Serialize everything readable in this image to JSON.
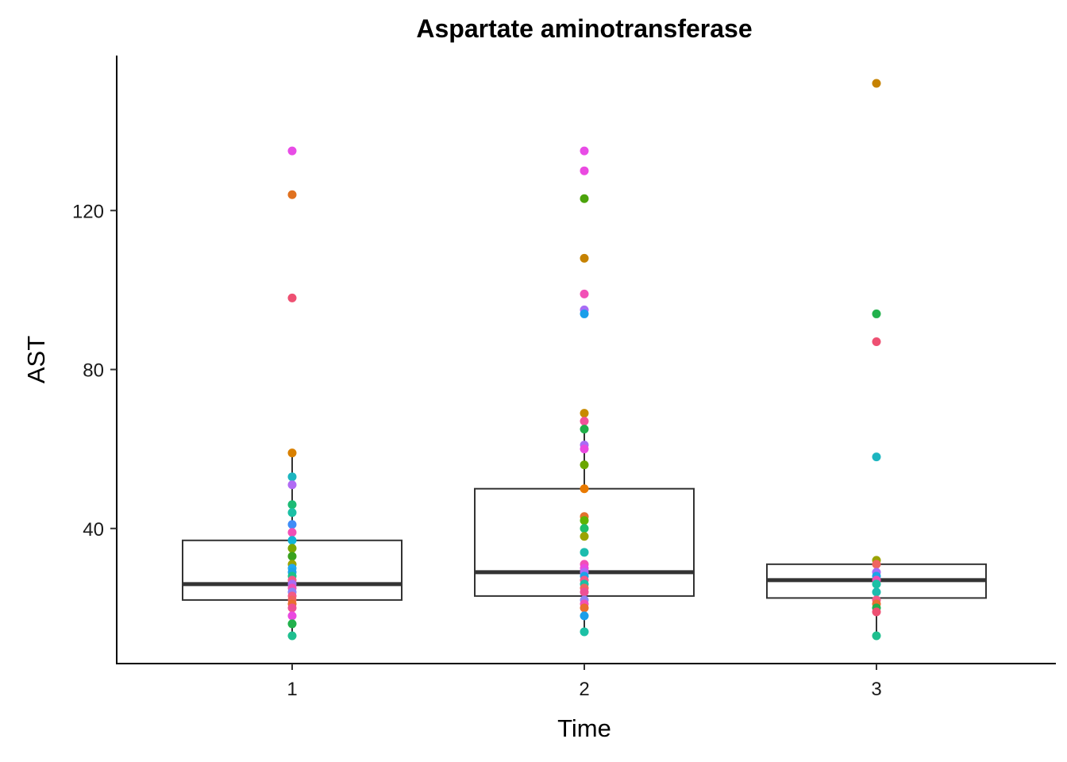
{
  "chart_data": {
    "type": "box",
    "title": "Aspartate aminotransferase",
    "xlabel": "Time",
    "ylabel": "AST",
    "categories": [
      "1",
      "2",
      "3"
    ],
    "ylim": [
      6,
      159
    ],
    "yticks": [
      40,
      80,
      120
    ],
    "grid": false,
    "legend": "none",
    "boxes": [
      {
        "category": "1",
        "q1": 22,
        "median": 26,
        "q3": 37,
        "whisker_low": 13,
        "whisker_high": 59
      },
      {
        "category": "2",
        "q1": 23,
        "median": 29,
        "q3": 50,
        "whisker_low": 14,
        "whisker_high": 69
      },
      {
        "category": "3",
        "q1": 22.5,
        "median": 27,
        "q3": 31,
        "whisker_low": 13,
        "whisker_high": 32
      }
    ],
    "points": [
      {
        "x": "1",
        "y": 135,
        "color": "#e84ce6"
      },
      {
        "x": "1",
        "y": 124,
        "color": "#e0711f"
      },
      {
        "x": "1",
        "y": 98,
        "color": "#ee5072"
      },
      {
        "x": "1",
        "y": 59,
        "color": "#d98000"
      },
      {
        "x": "1",
        "y": 53,
        "color": "#1cb5c0"
      },
      {
        "x": "1",
        "y": 51,
        "color": "#b16bf4"
      },
      {
        "x": "1",
        "y": 46,
        "color": "#1dbb75"
      },
      {
        "x": "1",
        "y": 44,
        "color": "#1cc0a5"
      },
      {
        "x": "1",
        "y": 41,
        "color": "#3f8df7"
      },
      {
        "x": "1",
        "y": 39,
        "color": "#f24fb6"
      },
      {
        "x": "1",
        "y": 37,
        "color": "#12b4d6"
      },
      {
        "x": "1",
        "y": 35,
        "color": "#7aa600"
      },
      {
        "x": "1",
        "y": 33,
        "color": "#3aa11e"
      },
      {
        "x": "1",
        "y": 31,
        "color": "#9ba300"
      },
      {
        "x": "1",
        "y": 30,
        "color": "#22a7f0"
      },
      {
        "x": "1",
        "y": 29,
        "color": "#1aa4e8"
      },
      {
        "x": "1",
        "y": 28,
        "color": "#1bc28a"
      },
      {
        "x": "1",
        "y": 27,
        "color": "#f25a8a"
      },
      {
        "x": "1",
        "y": 26,
        "color": "#a86cf5"
      },
      {
        "x": "1",
        "y": 25,
        "color": "#f24fb6"
      },
      {
        "x": "1",
        "y": 24,
        "color": "#8f83f3"
      },
      {
        "x": "1",
        "y": 23,
        "color": "#f45a87"
      },
      {
        "x": "1",
        "y": 22,
        "color": "#f06560"
      },
      {
        "x": "1",
        "y": 21,
        "color": "#e96f2f"
      },
      {
        "x": "1",
        "y": 20,
        "color": "#ee5094"
      },
      {
        "x": "1",
        "y": 18,
        "color": "#ea49e0"
      },
      {
        "x": "1",
        "y": 16,
        "color": "#22b14c"
      },
      {
        "x": "1",
        "y": 13,
        "color": "#1fbf8f"
      },
      {
        "x": "2",
        "y": 135,
        "color": "#e84ce6"
      },
      {
        "x": "2",
        "y": 130,
        "color": "#ea49e0"
      },
      {
        "x": "2",
        "y": 123,
        "color": "#4ba30b"
      },
      {
        "x": "2",
        "y": 108,
        "color": "#c68200"
      },
      {
        "x": "2",
        "y": 99,
        "color": "#f24fb6"
      },
      {
        "x": "2",
        "y": 95,
        "color": "#a86cf5"
      },
      {
        "x": "2",
        "y": 94,
        "color": "#1a9eea"
      },
      {
        "x": "2",
        "y": 69,
        "color": "#c88a00"
      },
      {
        "x": "2",
        "y": 67,
        "color": "#f2519a"
      },
      {
        "x": "2",
        "y": 65,
        "color": "#1fae48"
      },
      {
        "x": "2",
        "y": 61,
        "color": "#a86cf5"
      },
      {
        "x": "2",
        "y": 60,
        "color": "#ea49e0"
      },
      {
        "x": "2",
        "y": 56,
        "color": "#6aa700"
      },
      {
        "x": "2",
        "y": 50,
        "color": "#e97a00"
      },
      {
        "x": "2",
        "y": 43,
        "color": "#e4712c"
      },
      {
        "x": "2",
        "y": 42,
        "color": "#5fb300"
      },
      {
        "x": "2",
        "y": 40,
        "color": "#1fbd68"
      },
      {
        "x": "2",
        "y": 38,
        "color": "#9ba300"
      },
      {
        "x": "2",
        "y": 34,
        "color": "#1cbcae"
      },
      {
        "x": "2",
        "y": 31,
        "color": "#f24fb6"
      },
      {
        "x": "2",
        "y": 30,
        "color": "#ea49e0"
      },
      {
        "x": "2",
        "y": 29,
        "color": "#b16bf4"
      },
      {
        "x": "2",
        "y": 28,
        "color": "#1aa4e8"
      },
      {
        "x": "2",
        "y": 27,
        "color": "#f45a87"
      },
      {
        "x": "2",
        "y": 26,
        "color": "#1cc0a5"
      },
      {
        "x": "2",
        "y": 25,
        "color": "#f06560"
      },
      {
        "x": "2",
        "y": 24,
        "color": "#ee5094"
      },
      {
        "x": "2",
        "y": 22,
        "color": "#8f83f3"
      },
      {
        "x": "2",
        "y": 21,
        "color": "#f24fb6"
      },
      {
        "x": "2",
        "y": 20,
        "color": "#e96f2f"
      },
      {
        "x": "2",
        "y": 18,
        "color": "#1a9eea"
      },
      {
        "x": "2",
        "y": 14,
        "color": "#1cc0a5"
      },
      {
        "x": "3",
        "y": 152,
        "color": "#c68200"
      },
      {
        "x": "3",
        "y": 94,
        "color": "#22b14c"
      },
      {
        "x": "3",
        "y": 87,
        "color": "#ee5072"
      },
      {
        "x": "3",
        "y": 58,
        "color": "#1cb5c0"
      },
      {
        "x": "3",
        "y": 32,
        "color": "#9ba300"
      },
      {
        "x": "3",
        "y": 31,
        "color": "#f06560"
      },
      {
        "x": "3",
        "y": 29,
        "color": "#a86cf5"
      },
      {
        "x": "3",
        "y": 28,
        "color": "#1aa4e8"
      },
      {
        "x": "3",
        "y": 27,
        "color": "#f24fb6"
      },
      {
        "x": "3",
        "y": 26,
        "color": "#1cc0a5"
      },
      {
        "x": "3",
        "y": 24,
        "color": "#1cbcae"
      },
      {
        "x": "3",
        "y": 22,
        "color": "#f45a87"
      },
      {
        "x": "3",
        "y": 21,
        "color": "#e96f2f"
      },
      {
        "x": "3",
        "y": 20,
        "color": "#22b14c"
      },
      {
        "x": "3",
        "y": 19,
        "color": "#ee5072"
      },
      {
        "x": "3",
        "y": 13,
        "color": "#1fbf8f"
      }
    ]
  }
}
